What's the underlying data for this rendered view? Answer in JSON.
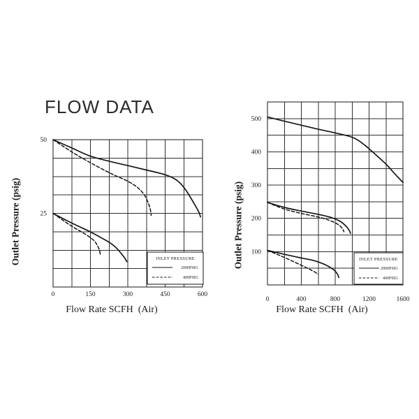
{
  "page": {
    "title": "FLOW DATA"
  },
  "colors": {
    "background": "#ffffff",
    "ink": "#161616",
    "grid": "#2e2e2e"
  },
  "chart_data": [
    {
      "type": "line",
      "title": "",
      "xlabel": "Flow Rate SCFH  (Air)",
      "ylabel": "Outlet Pressure (psig)",
      "xlim": [
        0,
        600
      ],
      "ylim": [
        0,
        50
      ],
      "x_ticks": [
        0,
        150,
        300,
        450,
        600
      ],
      "y_ticks": [
        50,
        25
      ],
      "grid": {
        "cols": 8,
        "rows": 8,
        "on": true
      },
      "legend": {
        "title": "INLET PRESSURE",
        "position": "bottom-right",
        "entries": [
          {
            "label": "2000PSIG",
            "line_style": "solid"
          },
          {
            "label": "400PSIG",
            "line_style": "dashed"
          }
        ]
      },
      "series": [
        {
          "name": "2000PSIG (50 psig setting)",
          "style": "solid",
          "points": [
            [
              0,
              50
            ],
            [
              75,
              47.2
            ],
            [
              150,
              44.4
            ],
            [
              225,
              42.7
            ],
            [
              300,
              41.2
            ],
            [
              375,
              39.7
            ],
            [
              450,
              38.1
            ],
            [
              490,
              36.6
            ],
            [
              515,
              34.8
            ],
            [
              540,
              32
            ],
            [
              565,
              28.5
            ],
            [
              585,
              25.5
            ],
            [
              592,
              23.8
            ]
          ]
        },
        {
          "name": "400PSIG (50 psig setting)",
          "style": "dashed",
          "points": [
            [
              0,
              50
            ],
            [
              80,
              45.6
            ],
            [
              160,
              41.7
            ],
            [
              240,
              38.2
            ],
            [
              300,
              35.9
            ],
            [
              340,
              33.7
            ],
            [
              365,
              31.4
            ],
            [
              380,
              29
            ],
            [
              390,
              26.5
            ],
            [
              394,
              24.3
            ]
          ]
        },
        {
          "name": "2000PSIG (25 psig setting)",
          "style": "solid",
          "points": [
            [
              0,
              25
            ],
            [
              75,
              21.7
            ],
            [
              150,
              18.7
            ],
            [
              200,
              16.4
            ],
            [
              230,
              14.9
            ],
            [
              255,
              13.2
            ],
            [
              275,
              11.2
            ],
            [
              288,
              9.8
            ],
            [
              296,
              8.6
            ]
          ]
        },
        {
          "name": "400PSIG (25 psig setting)",
          "style": "dashed",
          "points": [
            [
              0,
              25
            ],
            [
              70,
              20.9
            ],
            [
              130,
              17.9
            ],
            [
              165,
              15.7
            ],
            [
              180,
              13.7
            ],
            [
              187,
              12.2
            ],
            [
              190,
              10.8
            ]
          ]
        }
      ]
    },
    {
      "type": "line",
      "title": "",
      "xlabel": "Flow Rate SCFH  (Air)",
      "ylabel": "Outlet Pressure (psig)",
      "xlim": [
        0,
        1600
      ],
      "ylim": [
        0,
        550
      ],
      "x_ticks": [
        0,
        400,
        800,
        1200,
        1600
      ],
      "y_ticks": [
        500,
        400,
        300,
        200,
        100
      ],
      "grid": {
        "cols": 8,
        "rows": 11,
        "on": true
      },
      "legend": {
        "title": "INLET PRESSURE",
        "position": "bottom-right",
        "entries": [
          {
            "label": "2000PSIG",
            "line_style": "solid"
          },
          {
            "label": "400PSIG",
            "line_style": "dashed"
          }
        ]
      },
      "series": [
        {
          "name": "2000PSIG (500 psig setting)",
          "style": "solid",
          "points": [
            [
              0,
              505
            ],
            [
              200,
              492
            ],
            [
              400,
              480
            ],
            [
              600,
              468
            ],
            [
              800,
              457
            ],
            [
              950,
              448
            ],
            [
              1050,
              438
            ],
            [
              1150,
              420
            ],
            [
              1250,
              398
            ],
            [
              1400,
              363
            ],
            [
              1500,
              335
            ],
            [
              1600,
              308
            ]
          ]
        },
        {
          "name": "2000PSIG (250 psig setting)",
          "style": "solid",
          "points": [
            [
              0,
              248
            ],
            [
              200,
              233
            ],
            [
              400,
              222
            ],
            [
              600,
              212
            ],
            [
              750,
              203
            ],
            [
              860,
              191
            ],
            [
              930,
              176
            ],
            [
              970,
              162
            ],
            [
              980,
              155
            ]
          ]
        },
        {
          "name": "400PSIG (250 psig setting)",
          "style": "dashed",
          "points": [
            [
              0,
              248
            ],
            [
              200,
              228
            ],
            [
              400,
              215
            ],
            [
              600,
              204
            ],
            [
              720,
              195
            ],
            [
              820,
              184
            ],
            [
              880,
              171
            ],
            [
              903,
              160
            ]
          ]
        },
        {
          "name": "2000PSIG (100 psig setting)",
          "style": "solid",
          "points": [
            [
              0,
              104
            ],
            [
              200,
              92
            ],
            [
              400,
              81
            ],
            [
              550,
              73
            ],
            [
              680,
              61
            ],
            [
              780,
              46
            ],
            [
              825,
              33
            ],
            [
              843,
              22
            ]
          ]
        },
        {
          "name": "400PSIG (100 psig setting)",
          "style": "dashed",
          "points": [
            [
              0,
              104
            ],
            [
              150,
              88
            ],
            [
              300,
              71
            ],
            [
              450,
              53
            ],
            [
              550,
              40
            ],
            [
              600,
              32
            ]
          ]
        }
      ]
    }
  ]
}
